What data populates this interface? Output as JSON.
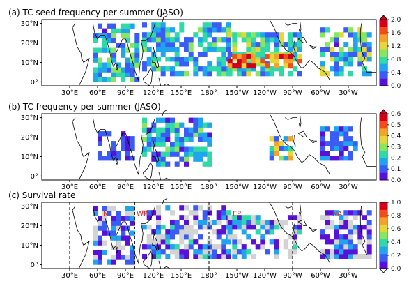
{
  "chart_data": [
    {
      "type": "heatmap",
      "title": "(a) TC seed frequency per summer (JASO)",
      "x_ticks": [
        "30°E",
        "60°E",
        "90°E",
        "120°E",
        "150°E",
        "180°",
        "150°W",
        "120°W",
        "90°W",
        "60°W",
        "30°W"
      ],
      "y_ticks": [
        "0°",
        "10°N",
        "20°N",
        "30°N"
      ],
      "xlim": [
        0,
        360
      ],
      "ylim": [
        -2,
        32
      ],
      "colorbar_ticks": [
        "0.0",
        "0.4",
        "0.8",
        "1.2",
        "1.6",
        "2.0"
      ],
      "colorbar_extend": "max",
      "vmin": 0.0,
      "vmax": 2.0,
      "colormap": [
        "#5a10d6",
        "#3a5cf5",
        "#21a4ee",
        "#2fd9a8",
        "#8ae660",
        "#e3d73a",
        "#f7a12d",
        "#ef4d1b",
        "#d1001a"
      ],
      "grid": [
        {
          "lon": [
            55,
            105
          ],
          "lat": [
            0,
            28
          ],
          "min": 0.2,
          "max": 1.0
        },
        {
          "lon": [
            108,
            200
          ],
          "lat": [
            3,
            30
          ],
          "min": 0.25,
          "max": 1.0
        },
        {
          "lon": [
            200,
            280
          ],
          "lat": [
            3,
            25
          ],
          "min": 0.3,
          "max": 1.2
        },
        {
          "lon": [
            200,
            280
          ],
          "lat": [
            7,
            14
          ],
          "min": 1.2,
          "max": 2.0
        },
        {
          "lon": [
            300,
            355
          ],
          "lat": [
            3,
            27
          ],
          "min": 0.2,
          "max": 1.2
        }
      ]
    },
    {
      "type": "heatmap",
      "title": "(b) TC frequency per summer (JASO)",
      "x_ticks": [
        "30°E",
        "60°E",
        "90°E",
        "120°E",
        "150°E",
        "180°",
        "150°W",
        "120°W",
        "90°W",
        "60°W",
        "30°W"
      ],
      "y_ticks": [
        "0°",
        "10°N",
        "20°N",
        "30°N"
      ],
      "xlim": [
        0,
        360
      ],
      "ylim": [
        -2,
        32
      ],
      "colorbar_ticks": [
        "0.0",
        "0.1",
        "0.2",
        "0.3",
        "0.4",
        "0.5",
        "0.6"
      ],
      "colorbar_extend": "max",
      "vmin": 0.0,
      "vmax": 0.65,
      "colormap": [
        "#5a10d6",
        "#3a5cf5",
        "#21a4ee",
        "#2fd9a8",
        "#8ae660",
        "#e3d73a",
        "#f7a12d",
        "#ef4d1b",
        "#d1001a"
      ],
      "grid": [
        {
          "lon": [
            60,
            100
          ],
          "lat": [
            8,
            22
          ],
          "min": 0.05,
          "max": 0.15
        },
        {
          "lon": [
            108,
            180
          ],
          "lat": [
            5,
            28
          ],
          "min": 0.05,
          "max": 0.3
        },
        {
          "lon": [
            245,
            270
          ],
          "lat": [
            8,
            20
          ],
          "min": 0.1,
          "max": 0.5
        },
        {
          "lon": [
            300,
            340
          ],
          "lat": [
            8,
            25
          ],
          "min": 0.05,
          "max": 0.2
        }
      ]
    },
    {
      "type": "heatmap",
      "title": "(c) Survival rate",
      "x_ticks": [
        "30°E",
        "60°E",
        "90°E",
        "120°E",
        "150°E",
        "180°",
        "150°W",
        "120°W",
        "90°W",
        "60°W",
        "30°W"
      ],
      "y_ticks": [
        "0°",
        "10°N",
        "20°N",
        "30°N"
      ],
      "xlim": [
        0,
        360
      ],
      "ylim": [
        -2,
        32
      ],
      "colorbar_ticks": [
        "0.0",
        "0.2",
        "0.4",
        "0.6",
        "0.8",
        "1.0"
      ],
      "colorbar_extend": "min",
      "vmin": 0.0,
      "vmax": 1.0,
      "colormap": [
        "#5a10d6",
        "#3a5cf5",
        "#21a4ee",
        "#2fd9a8",
        "#8ae660",
        "#e3d73a",
        "#f7a12d",
        "#ef4d1b",
        "#d1001a"
      ],
      "zero_color": "#d3d3d3",
      "region_dividers_lon": [
        30,
        100,
        180,
        270
      ],
      "region_labels": [
        {
          "text": "NI",
          "lon": 70,
          "lat": 25
        },
        {
          "text": "WP",
          "lon": 108,
          "lat": 25
        },
        {
          "text": "EP",
          "lon": 210,
          "lat": 25
        },
        {
          "text": "NA",
          "lon": 318,
          "lat": 25
        }
      ],
      "region_label_color": "#e02020",
      "grid": [
        {
          "lon": [
            55,
            100
          ],
          "lat": [
            0,
            28
          ],
          "min": 0.0,
          "max": 0.3
        },
        {
          "lon": [
            108,
            200
          ],
          "lat": [
            3,
            30
          ],
          "min": 0.0,
          "max": 0.35
        },
        {
          "lon": [
            200,
            280
          ],
          "lat": [
            3,
            25
          ],
          "min": 0.0,
          "max": 0.4
        },
        {
          "lon": [
            300,
            355
          ],
          "lat": [
            3,
            27
          ],
          "min": 0.0,
          "max": 0.3
        }
      ]
    }
  ]
}
